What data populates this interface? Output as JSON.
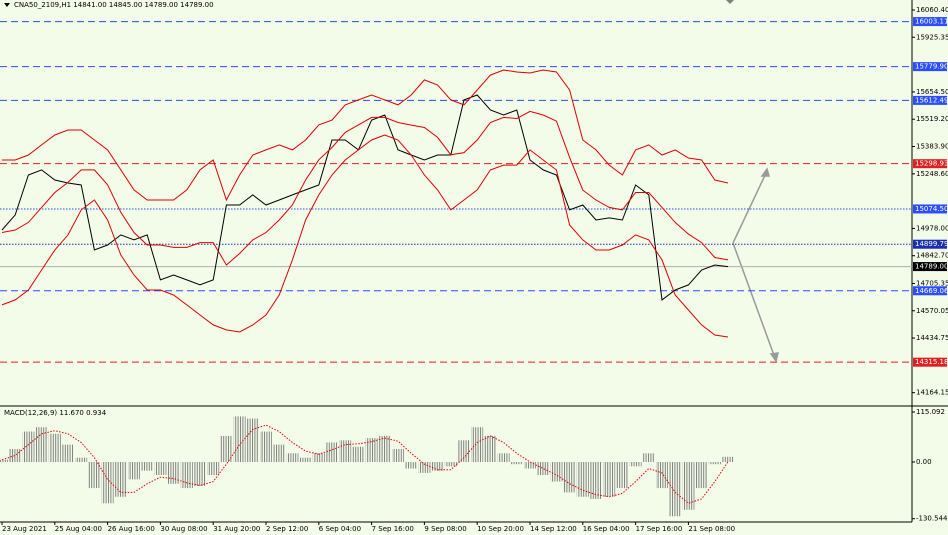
{
  "chart_data": [
    {
      "type": "line",
      "title": "CNA50_2109,H1  14841.00 14845.00 14789.00 14789.00",
      "categories": [
        "23 Aug 2021",
        null,
        null,
        null,
        "25 Aug 04:00",
        null,
        null,
        null,
        "26 Aug 16:00",
        null,
        null,
        null,
        "30 Aug 08:00",
        null,
        null,
        null,
        "31 Aug 20:00",
        null,
        null,
        null,
        "2 Sep 12:00",
        null,
        null,
        null,
        "6 Sep 04:00",
        null,
        null,
        null,
        "7 Sep 16:00",
        null,
        null,
        null,
        "9 Sep 08:00",
        null,
        null,
        null,
        "10 Sep 20:00",
        null,
        null,
        null,
        "14 Sep 12:00",
        null,
        null,
        null,
        "16 Sep 04:00",
        null,
        null,
        null,
        "17 Sep 16:00",
        null,
        null,
        null,
        "21 Sep 08:00",
        null,
        null,
        null
      ],
      "series": [
        {
          "color": "#000000",
          "values": [
            14970,
            15045,
            15243,
            15268,
            15218,
            15203,
            15193,
            14871,
            14896,
            14946,
            14921,
            14946,
            14723,
            14747,
            14723,
            14698,
            14723,
            15094,
            15094,
            15144,
            15094,
            15119,
            15144,
            15169,
            15193,
            15416,
            15416,
            15367,
            15515,
            15540,
            15367,
            15342,
            15317,
            15342,
            15342,
            15615,
            15639,
            15565,
            15540,
            15565,
            15317,
            15268,
            15243,
            15070,
            15094,
            15020,
            15030,
            15020,
            15193,
            15144,
            14624,
            14673,
            14698,
            14772,
            14797,
            14789
          ]
        },
        {
          "color": "#e00000",
          "values": [
            15317,
            15317,
            15342,
            15392,
            15441,
            15466,
            15466,
            15416,
            15367,
            15268,
            15169,
            15119,
            15119,
            15119,
            15169,
            15268,
            15317,
            15119,
            15243,
            15342,
            15367,
            15392,
            15367,
            15416,
            15491,
            15515,
            15590,
            15615,
            15639,
            15615,
            15590,
            15639,
            15714,
            15689,
            15615,
            15590,
            15664,
            15738,
            15763,
            15753,
            15748,
            15763,
            15753,
            15664,
            15416,
            15367,
            15292,
            15243,
            15367,
            15392,
            15342,
            15367,
            15327,
            15317,
            15218,
            15203
          ]
        },
        {
          "color": "#e00000",
          "values": [
            14958,
            14970,
            15008,
            15082,
            15156,
            15206,
            15268,
            15268,
            15194,
            15058,
            14958,
            14896,
            14896,
            14884,
            14884,
            14908,
            14908,
            14797,
            14854,
            14921,
            14958,
            15020,
            15094,
            15218,
            15318,
            15379,
            15454,
            15491,
            15528,
            15528,
            15503,
            15490,
            15478,
            15429,
            15343,
            15354,
            15416,
            15503,
            15528,
            15523,
            15558,
            15540,
            15510,
            15330,
            15168,
            15119,
            15082,
            15070,
            15156,
            15156,
            15082,
            15008,
            14950,
            14908,
            14834,
            14822
          ]
        },
        {
          "color": "#e00000",
          "values": [
            14599,
            14624,
            14673,
            14772,
            14871,
            14946,
            15070,
            15119,
            15020,
            14847,
            14747,
            14673,
            14673,
            14648,
            14599,
            14549,
            14500,
            14475,
            14465,
            14500,
            14549,
            14648,
            14822,
            15020,
            15144,
            15243,
            15317,
            15367,
            15416,
            15441,
            15416,
            15342,
            15243,
            15169,
            15070,
            15119,
            15169,
            15268,
            15292,
            15292,
            15367,
            15317,
            15268,
            14995,
            14921,
            14871,
            14871,
            14896,
            14946,
            14921,
            14822,
            14648,
            14574,
            14500,
            14450,
            14440
          ]
        }
      ],
      "ylim": [
        14103,
        16110
      ],
      "yticks": [
        {
          "value": 16060.4,
          "label": "16060.40"
        },
        15925.35,
        {
          "value": 15654.5,
          "label": "15654.50"
        },
        {
          "value": 15519.2,
          "label": "15519.20"
        },
        {
          "value": 15383.9,
          "label": "15383.90"
        },
        {
          "value": 15248.6,
          "label": "15248.60"
        },
        {
          "value": 14978,
          "label": "14978.00"
        },
        {
          "value": 14842.7,
          "label": "14842.70"
        },
        14705.35,
        14570.05,
        14434.75,
        14164.15
      ],
      "levels": [
        {
          "value": 16003.11,
          "color": "#2a4dff",
          "style": "dashed"
        },
        {
          "value": 15779.9,
          "label": "15779.90",
          "color": "#2a4dff",
          "style": "dashed"
        },
        {
          "value": 15612.49,
          "color": "#2a4dff",
          "style": "dashed"
        },
        {
          "value": 15298.93,
          "color": "#e02020",
          "style": "dashed"
        },
        {
          "value": 15074.5,
          "label": "15074.50",
          "color": "#2a4dff",
          "style": "dotted"
        },
        {
          "value": 14899.79,
          "color": "#1a2fb0",
          "style": "dotted"
        },
        {
          "value": 14789,
          "label": "14789.00",
          "color": "#000000",
          "style": "solid"
        },
        {
          "value": 14669.06,
          "color": "#2a4dff",
          "style": "dashed"
        },
        {
          "value": 14315.18,
          "color": "#e02020",
          "style": "dashed"
        }
      ]
    },
    {
      "type": "bar",
      "title": "MACD(12,26,9) 11.670 0.934",
      "series": [
        {
          "color": "#808080",
          "values": [
            5,
            30,
            70,
            80,
            65,
            40,
            10,
            -60,
            -95,
            -80,
            -40,
            -20,
            -30,
            -50,
            -60,
            -55,
            -30,
            60,
            105,
            100,
            70,
            40,
            20,
            10,
            20,
            45,
            50,
            35,
            55,
            60,
            30,
            -15,
            -25,
            -20,
            -10,
            50,
            80,
            60,
            20,
            -5,
            -15,
            -30,
            -45,
            -70,
            -80,
            -85,
            -80,
            -60,
            -10,
            20,
            -60,
            -125,
            -110,
            -60,
            -5,
            12
          ]
        },
        {
          "type": "line",
          "color": "#e00000",
          "style": "dotted",
          "values": [
            5,
            15,
            40,
            65,
            72,
            65,
            45,
            10,
            -40,
            -70,
            -70,
            -50,
            -35,
            -38,
            -48,
            -54,
            -45,
            -5,
            40,
            75,
            85,
            70,
            45,
            25,
            18,
            28,
            40,
            42,
            47,
            55,
            48,
            20,
            -5,
            -18,
            -18,
            10,
            45,
            60,
            45,
            20,
            0,
            -15,
            -30,
            -50,
            -65,
            -75,
            -80,
            -72,
            -45,
            -15,
            -25,
            -70,
            -95,
            -85,
            -45,
            1
          ]
        }
      ],
      "ylim": [
        -138.1,
        124.3
      ],
      "yticks": [
        115.092,
        {
          "value": 0,
          "label": "0.00"
        },
        -130.544
      ]
    }
  ]
}
